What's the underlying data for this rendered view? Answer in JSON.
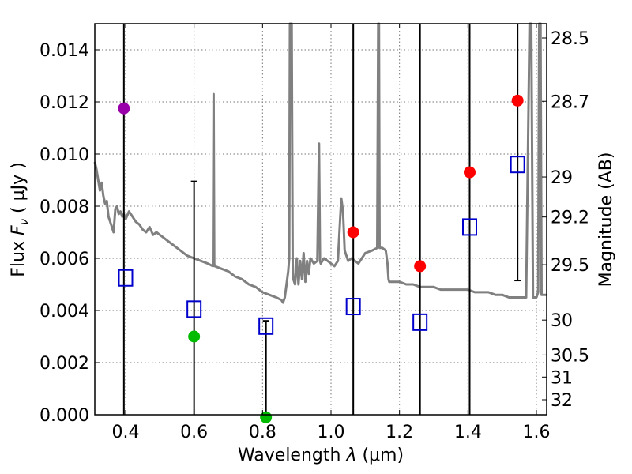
{
  "chart_data": {
    "type": "scatter",
    "xlabel_prefix": "Wavelength  ",
    "xlabel_lambda": "λ",
    "xlabel_unit": " (μm)",
    "ylabel_prefix": "Flux  ",
    "ylabel_symbol": "F",
    "ylabel_subscript": "ν",
    "ylabel_unit": " ( μJy )",
    "y2label": "Magnitude (AB)",
    "xlim": [
      0.31,
      1.63
    ],
    "ylim": [
      0.0,
      0.015
    ],
    "xticks": [
      "0.4",
      "0.6",
      "0.8",
      "1.0",
      "1.2",
      "1.4",
      "1.6"
    ],
    "xtick_values": [
      0.4,
      0.6,
      0.8,
      1.0,
      1.2,
      1.4,
      1.6
    ],
    "yticks": [
      "0.000",
      "0.002",
      "0.004",
      "0.006",
      "0.008",
      "0.010",
      "0.012",
      "0.014"
    ],
    "ytick_values": [
      0.0,
      0.002,
      0.004,
      0.006,
      0.008,
      0.01,
      0.012,
      0.014
    ],
    "mag_ticks": [
      "28.5",
      "28.7",
      "29",
      "29.2",
      "29.5",
      "30",
      "30.5",
      "31",
      "32"
    ],
    "mag_tick_values": [
      28.5,
      28.7,
      29.0,
      29.2,
      29.5,
      30.0,
      30.5,
      31.0,
      32.0
    ],
    "grid": true,
    "colors": {
      "sed": "#808080",
      "model": "#0000cc",
      "error_bar": "#000000",
      "violet": "#9900aa",
      "green": "#00bb00",
      "red": "#ff0000"
    },
    "sed_spectrum": [
      [
        0.31,
        0.0097
      ],
      [
        0.315,
        0.0094
      ],
      [
        0.32,
        0.009
      ],
      [
        0.325,
        0.0086
      ],
      [
        0.33,
        0.0089
      ],
      [
        0.335,
        0.0084
      ],
      [
        0.34,
        0.0081
      ],
      [
        0.345,
        0.0082
      ],
      [
        0.35,
        0.0076
      ],
      [
        0.355,
        0.0074
      ],
      [
        0.36,
        0.0072
      ],
      [
        0.365,
        0.007
      ],
      [
        0.37,
        0.0079
      ],
      [
        0.375,
        0.008
      ],
      [
        0.38,
        0.0077
      ],
      [
        0.385,
        0.0078
      ],
      [
        0.39,
        0.0076
      ],
      [
        0.395,
        0.0077
      ],
      [
        0.4,
        0.0075
      ],
      [
        0.41,
        0.0078
      ],
      [
        0.42,
        0.0076
      ],
      [
        0.43,
        0.0074
      ],
      [
        0.44,
        0.0073
      ],
      [
        0.45,
        0.0071
      ],
      [
        0.46,
        0.007
      ],
      [
        0.47,
        0.0072
      ],
      [
        0.48,
        0.0069
      ],
      [
        0.49,
        0.007
      ],
      [
        0.5,
        0.0069
      ],
      [
        0.51,
        0.0068
      ],
      [
        0.52,
        0.0067
      ],
      [
        0.53,
        0.0066
      ],
      [
        0.54,
        0.0065
      ],
      [
        0.55,
        0.0064
      ],
      [
        0.56,
        0.0063
      ],
      [
        0.57,
        0.0062
      ],
      [
        0.58,
        0.0061
      ],
      [
        0.6,
        0.006
      ],
      [
        0.62,
        0.0059
      ],
      [
        0.64,
        0.0058
      ],
      [
        0.655,
        0.0057
      ],
      [
        0.657,
        0.0123
      ],
      [
        0.659,
        0.0058
      ],
      [
        0.66,
        0.0057
      ],
      [
        0.68,
        0.0056
      ],
      [
        0.7,
        0.0055
      ],
      [
        0.72,
        0.0053
      ],
      [
        0.74,
        0.0052
      ],
      [
        0.76,
        0.005
      ],
      [
        0.78,
        0.0049
      ],
      [
        0.8,
        0.0047
      ],
      [
        0.82,
        0.0046
      ],
      [
        0.84,
        0.0045
      ],
      [
        0.855,
        0.0044
      ],
      [
        0.86,
        0.0043
      ],
      [
        0.865,
        0.0045
      ],
      [
        0.87,
        0.005
      ],
      [
        0.875,
        0.0055
      ],
      [
        0.878,
        0.006
      ],
      [
        0.88,
        0.0151
      ],
      [
        0.885,
        0.0151
      ],
      [
        0.888,
        0.0058
      ],
      [
        0.89,
        0.0052
      ],
      [
        0.895,
        0.005
      ],
      [
        0.9,
        0.006
      ],
      [
        0.905,
        0.005
      ],
      [
        0.91,
        0.0059
      ],
      [
        0.915,
        0.0052
      ],
      [
        0.92,
        0.0062
      ],
      [
        0.925,
        0.0051
      ],
      [
        0.93,
        0.0059
      ],
      [
        0.935,
        0.0054
      ],
      [
        0.94,
        0.006
      ],
      [
        0.95,
        0.0058
      ],
      [
        0.96,
        0.0059
      ],
      [
        0.965,
        0.0104
      ],
      [
        0.968,
        0.0059
      ],
      [
        0.97,
        0.0058
      ],
      [
        0.98,
        0.006
      ],
      [
        0.99,
        0.0059
      ],
      [
        1.0,
        0.0058
      ],
      [
        1.01,
        0.0057
      ],
      [
        1.02,
        0.0059
      ],
      [
        1.03,
        0.0083
      ],
      [
        1.035,
        0.0078
      ],
      [
        1.04,
        0.0063
      ],
      [
        1.05,
        0.0059
      ],
      [
        1.06,
        0.006
      ],
      [
        1.07,
        0.0059
      ],
      [
        1.08,
        0.0058
      ],
      [
        1.09,
        0.006
      ],
      [
        1.1,
        0.0062
      ],
      [
        1.12,
        0.0063
      ],
      [
        1.135,
        0.0064
      ],
      [
        1.138,
        0.0151
      ],
      [
        1.14,
        0.0151
      ],
      [
        1.142,
        0.0064
      ],
      [
        1.15,
        0.0064
      ],
      [
        1.16,
        0.0063
      ],
      [
        1.165,
        0.0058
      ],
      [
        1.168,
        0.0052
      ],
      [
        1.17,
        0.0051
      ],
      [
        1.18,
        0.0051
      ],
      [
        1.2,
        0.0051
      ],
      [
        1.22,
        0.005
      ],
      [
        1.24,
        0.005
      ],
      [
        1.26,
        0.0049
      ],
      [
        1.28,
        0.0049
      ],
      [
        1.3,
        0.0049
      ],
      [
        1.32,
        0.0048
      ],
      [
        1.34,
        0.0048
      ],
      [
        1.36,
        0.0048
      ],
      [
        1.38,
        0.0048
      ],
      [
        1.4,
        0.0048
      ],
      [
        1.42,
        0.0047
      ],
      [
        1.44,
        0.0047
      ],
      [
        1.46,
        0.0047
      ],
      [
        1.48,
        0.0046
      ],
      [
        1.5,
        0.0046
      ],
      [
        1.52,
        0.0045
      ],
      [
        1.54,
        0.0045
      ],
      [
        1.55,
        0.0045
      ],
      [
        1.57,
        0.0045
      ],
      [
        1.58,
        0.0151
      ],
      [
        1.585,
        0.0151
      ],
      [
        1.59,
        0.0045
      ],
      [
        1.6,
        0.0045
      ],
      [
        1.605,
        0.0047
      ],
      [
        1.608,
        0.0151
      ],
      [
        1.612,
        0.0151
      ],
      [
        1.615,
        0.0046
      ],
      [
        1.63,
        0.0046
      ]
    ],
    "model_points": [
      {
        "x": 0.4,
        "y": 0.00525
      },
      {
        "x": 0.6,
        "y": 0.00405
      },
      {
        "x": 0.81,
        "y": 0.0034
      },
      {
        "x": 1.065,
        "y": 0.00415
      },
      {
        "x": 1.26,
        "y": 0.00355
      },
      {
        "x": 1.405,
        "y": 0.0072
      },
      {
        "x": 1.545,
        "y": 0.0096
      }
    ],
    "observed_points": [
      {
        "x": 0.395,
        "y": 0.01175,
        "color": "violet",
        "err_low": 0.0,
        "err_high": 0.0151
      },
      {
        "x": 0.6,
        "y": 0.003,
        "color": "green",
        "err_low": 0.0,
        "err_high": 0.00895
      },
      {
        "x": 0.81,
        "y": -0.0001,
        "color": "green",
        "err_low": 0.0,
        "err_high": 0.0036
      },
      {
        "x": 1.065,
        "y": 0.007,
        "color": "red",
        "err_low": 0.0,
        "err_high": 0.0151
      },
      {
        "x": 1.26,
        "y": 0.0057,
        "color": "red",
        "err_low": 0.0,
        "err_high": 0.0151
      },
      {
        "x": 1.405,
        "y": 0.0093,
        "color": "red",
        "err_low": 0.0,
        "err_high": 0.0151
      },
      {
        "x": 1.545,
        "y": 0.01205,
        "color": "red",
        "err_low": 0.00515,
        "err_high": 0.0151
      }
    ]
  }
}
